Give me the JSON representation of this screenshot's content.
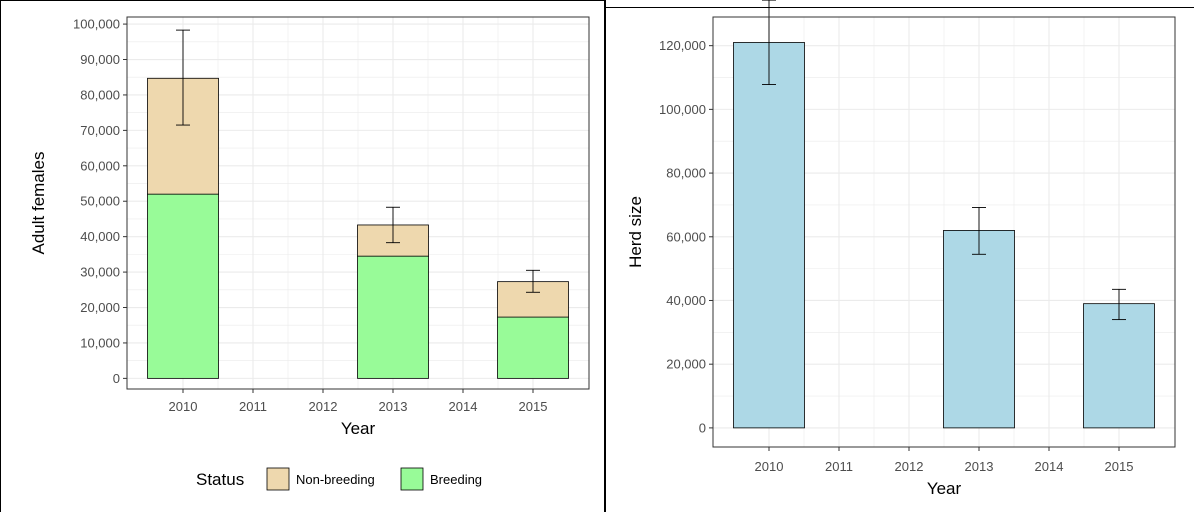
{
  "colors": {
    "breeding": "#98fb98",
    "non_breeding": "#eed8ae",
    "herd": "#add8e6",
    "grid": "#ebebeb",
    "axis_text": "#4d4d4d"
  },
  "chart_data": [
    {
      "type": "bar",
      "stacked": true,
      "categories": [
        "2010",
        "2011",
        "2012",
        "2013",
        "2014",
        "2015"
      ],
      "series": [
        {
          "name": "Breeding",
          "values": [
            52000,
            null,
            null,
            34500,
            null,
            17300
          ]
        },
        {
          "name": "Non-breeding",
          "values": [
            32700,
            null,
            null,
            8800,
            null,
            10000
          ]
        }
      ],
      "totals": [
        84700,
        null,
        null,
        43300,
        null,
        27300
      ],
      "error_bars": [
        {
          "category": "2010",
          "low": 71500,
          "high": 98300
        },
        {
          "category": "2013",
          "low": 38300,
          "high": 48300
        },
        {
          "category": "2015",
          "low": 24300,
          "high": 30500
        }
      ],
      "xlabel": "Year",
      "ylabel": "Adult females",
      "ylim": [
        -3000,
        102000
      ],
      "yticks": [
        "0",
        "10,000",
        "20,000",
        "30,000",
        "40,000",
        "50,000",
        "60,000",
        "70,000",
        "80,000",
        "90,000",
        "100,000"
      ],
      "legend": {
        "title": "Status",
        "position": "bottom",
        "entries": [
          "Non-breeding",
          "Breeding"
        ]
      },
      "grid": true
    },
    {
      "type": "bar",
      "categories": [
        "2010",
        "2011",
        "2012",
        "2013",
        "2014",
        "2015"
      ],
      "series": [
        {
          "values": [
            121000,
            null,
            null,
            62000,
            null,
            39000
          ]
        }
      ],
      "error_bars": [
        {
          "category": "2010",
          "low": 107800,
          "high": 134300
        },
        {
          "category": "2013",
          "low": 54500,
          "high": 69200
        },
        {
          "category": "2015",
          "low": 34000,
          "high": 43500
        }
      ],
      "xlabel": "Year",
      "ylabel": "Herd size",
      "ylim": [
        -6000,
        129000
      ],
      "yticks": [
        "0",
        "20,000",
        "40,000",
        "60,000",
        "80,000",
        "100,000",
        "120,000"
      ],
      "grid": true
    }
  ]
}
